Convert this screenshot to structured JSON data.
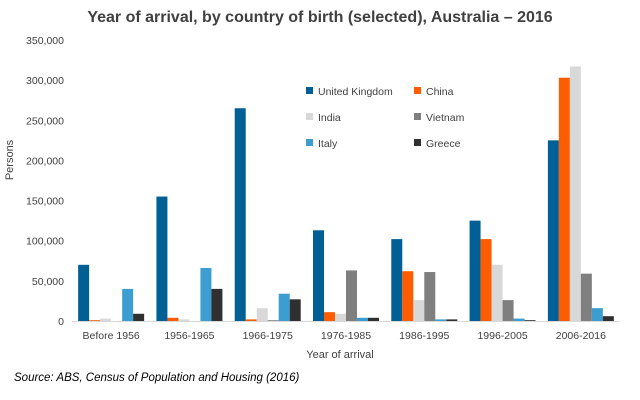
{
  "chart_data": {
    "type": "bar",
    "title": "Year of arrival, by country of birth (selected), Australia – 2016",
    "xlabel": "Year of arrival",
    "ylabel": "Persons",
    "ylim": [
      0,
      350000
    ],
    "yticks": [
      "0",
      "50,000",
      "100,000",
      "150,000",
      "200,000",
      "250,000",
      "300,000",
      "350,000"
    ],
    "ytick_values": [
      0,
      50000,
      100000,
      150000,
      200000,
      250000,
      300000,
      350000
    ],
    "grid": false,
    "legend_position": "top-center",
    "categories": [
      "Before 1956",
      "1956-1965",
      "1966-1975",
      "1976-1985",
      "1986-1995",
      "1996-2005",
      "2006-2016"
    ],
    "series": [
      {
        "name": "United Kingdom",
        "color": "#005f94",
        "values": [
          70000,
          155000,
          265000,
          113000,
          102000,
          125000,
          225000
        ]
      },
      {
        "name": "China",
        "color": "#fd5c00",
        "values": [
          1000,
          4000,
          2000,
          11000,
          62000,
          102000,
          303000
        ]
      },
      {
        "name": "India",
        "color": "#d8d8d8",
        "values": [
          3000,
          2000,
          16000,
          9000,
          26000,
          70000,
          317000
        ]
      },
      {
        "name": "Vietnam",
        "color": "#7f7f7f",
        "values": [
          0,
          0,
          1000,
          63000,
          61000,
          26000,
          59000
        ]
      },
      {
        "name": "Italy",
        "color": "#3c9ed0",
        "values": [
          40000,
          66000,
          34000,
          4000,
          2000,
          3000,
          16000
        ]
      },
      {
        "name": "Greece",
        "color": "#303030",
        "values": [
          9000,
          40000,
          27000,
          4000,
          2000,
          1000,
          6000
        ]
      }
    ]
  },
  "source": "Source:  ABS, Census of Population and Housing (2016)"
}
